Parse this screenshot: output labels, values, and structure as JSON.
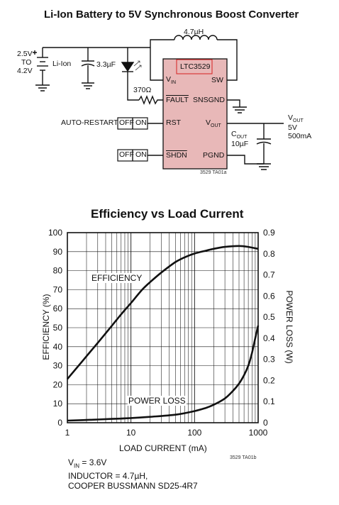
{
  "schematic": {
    "title": "Li-Ion Battery to 5V Synchronous Boost Converter",
    "battery_range_top": "2.5V",
    "battery_range_mid": "TO",
    "battery_range_bottom": "4.2V",
    "battery_label": "Li-Ion",
    "cap_in": "3.3µF",
    "inductor": "4.7µH",
    "resistor": "370Ω",
    "chip_name": "LTC3529",
    "pins": {
      "vin_main": "V",
      "vin_sub": "IN",
      "sw": "SW",
      "fault": "FAULT",
      "snsgnd": "SNSGND",
      "rst": "RST",
      "vout_main": "V",
      "vout_sub": "OUT",
      "shdn": "SHDN",
      "pgnd": "PGND"
    },
    "auto_restart": "AUTO-RESTART",
    "off": "OFF",
    "on": "ON",
    "vout_main": "V",
    "vout_sub": "OUT",
    "vout_volt": "5V",
    "vout_current": "500mA",
    "cout_main": "C",
    "cout_sub": "OUT",
    "cout_value": "10µF",
    "fig_code": "3529 TA01a"
  },
  "chart_data": {
    "type": "line",
    "title": "Efficiency vs Load Current",
    "xlabel": "LOAD CURRENT (mA)",
    "ylabel": "EFFICIENCY (%)",
    "y2label": "POWER LOSS (W)",
    "x_scale": "log",
    "xlim": [
      1,
      1000
    ],
    "ylim": [
      0,
      100
    ],
    "y2lim": [
      0,
      0.9
    ],
    "x_ticks": [
      1,
      10,
      100,
      1000
    ],
    "x_tick_labels": [
      "1",
      "10",
      "100",
      "1000"
    ],
    "y_ticks": [
      0,
      10,
      20,
      30,
      40,
      50,
      60,
      70,
      80,
      90,
      100
    ],
    "y_tick_labels": [
      "0",
      "10",
      "20",
      "30",
      "40",
      "50",
      "60",
      "70",
      "80",
      "90",
      "100"
    ],
    "y2_ticks": [
      0,
      0.1,
      0.2,
      0.3,
      0.4,
      0.5,
      0.6,
      0.7,
      0.8,
      0.9
    ],
    "y2_tick_labels": [
      "0",
      "0.1",
      "0.2",
      "0.3",
      "0.4",
      "0.5",
      "0.6",
      "0.7",
      "0.8",
      "0.9"
    ],
    "grid": true,
    "series": [
      {
        "name": "EFFICIENCY",
        "axis": "left",
        "x": [
          1,
          1.5,
          2,
          3,
          5,
          7,
          10,
          15,
          20,
          30,
          50,
          70,
          100,
          150,
          200,
          300,
          500,
          700,
          1000
        ],
        "y": [
          23,
          30,
          35,
          42,
          51,
          57,
          63,
          70,
          74,
          79,
          84.5,
          87,
          89,
          90.5,
          91.5,
          92.5,
          93,
          92.5,
          91.5
        ]
      },
      {
        "name": "POWER LOSS",
        "axis": "right",
        "x": [
          1,
          2,
          5,
          10,
          20,
          50,
          100,
          150,
          200,
          300,
          400,
          500,
          600,
          700,
          800,
          900,
          1000
        ],
        "y": [
          0.01,
          0.013,
          0.018,
          0.022,
          0.028,
          0.038,
          0.055,
          0.07,
          0.085,
          0.115,
          0.15,
          0.185,
          0.225,
          0.27,
          0.33,
          0.4,
          0.46
        ]
      }
    ],
    "annotations": [
      "EFFICIENCY",
      "POWER LOSS"
    ],
    "notes": {
      "vin_main": "V",
      "vin_sub": "IN",
      "vin_value": " = 3.6V",
      "inductor": "INDUCTOR = 4.7µH,",
      "part": "COOPER BUSSMANN SD25-4R7"
    },
    "fig_code": "3529 TA01b"
  }
}
